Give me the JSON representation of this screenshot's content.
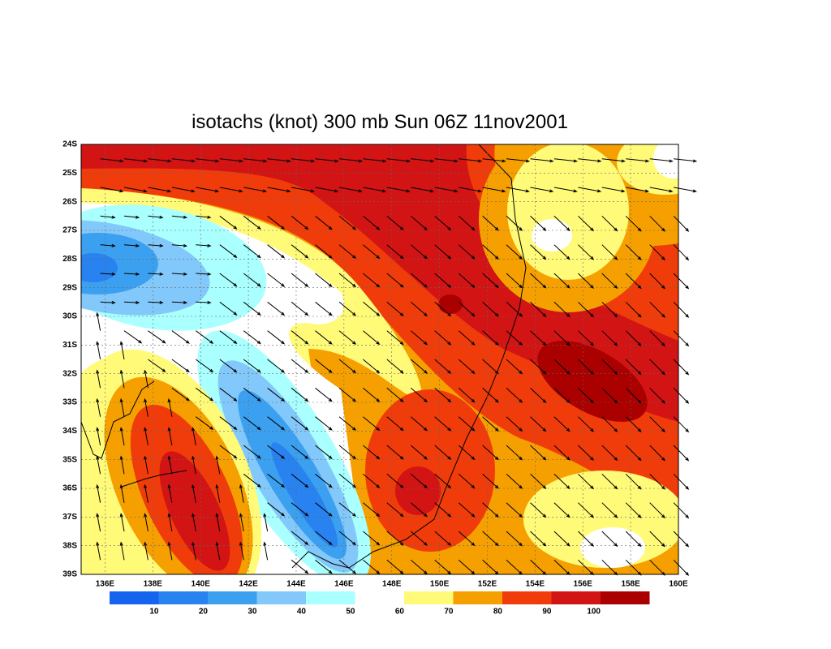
{
  "title": "isotachs (knot) 300 mb Sun 06Z 11nov2001",
  "lat_labels": [
    "24S",
    "25S",
    "26S",
    "27S",
    "28S",
    "29S",
    "30S",
    "31S",
    "32S",
    "33S",
    "34S",
    "35S",
    "36S",
    "37S",
    "38S",
    "39S"
  ],
  "lon_labels": [
    "136E",
    "138E",
    "140E",
    "142E",
    "144E",
    "146E",
    "148E",
    "150E",
    "152E",
    "154E",
    "156E",
    "158E",
    "160E"
  ],
  "colorbar": {
    "colors": [
      "#1464f0",
      "#2882f0",
      "#3ca0f0",
      "#82c8fa",
      "#aaffff",
      "#ffffff",
      "#fffa78",
      "#f5a000",
      "#f03c0a",
      "#d21414",
      "#aa0000"
    ],
    "labels": [
      "10",
      "20",
      "30",
      "40",
      "50",
      "60",
      "70",
      "80",
      "90",
      "100"
    ]
  }
}
